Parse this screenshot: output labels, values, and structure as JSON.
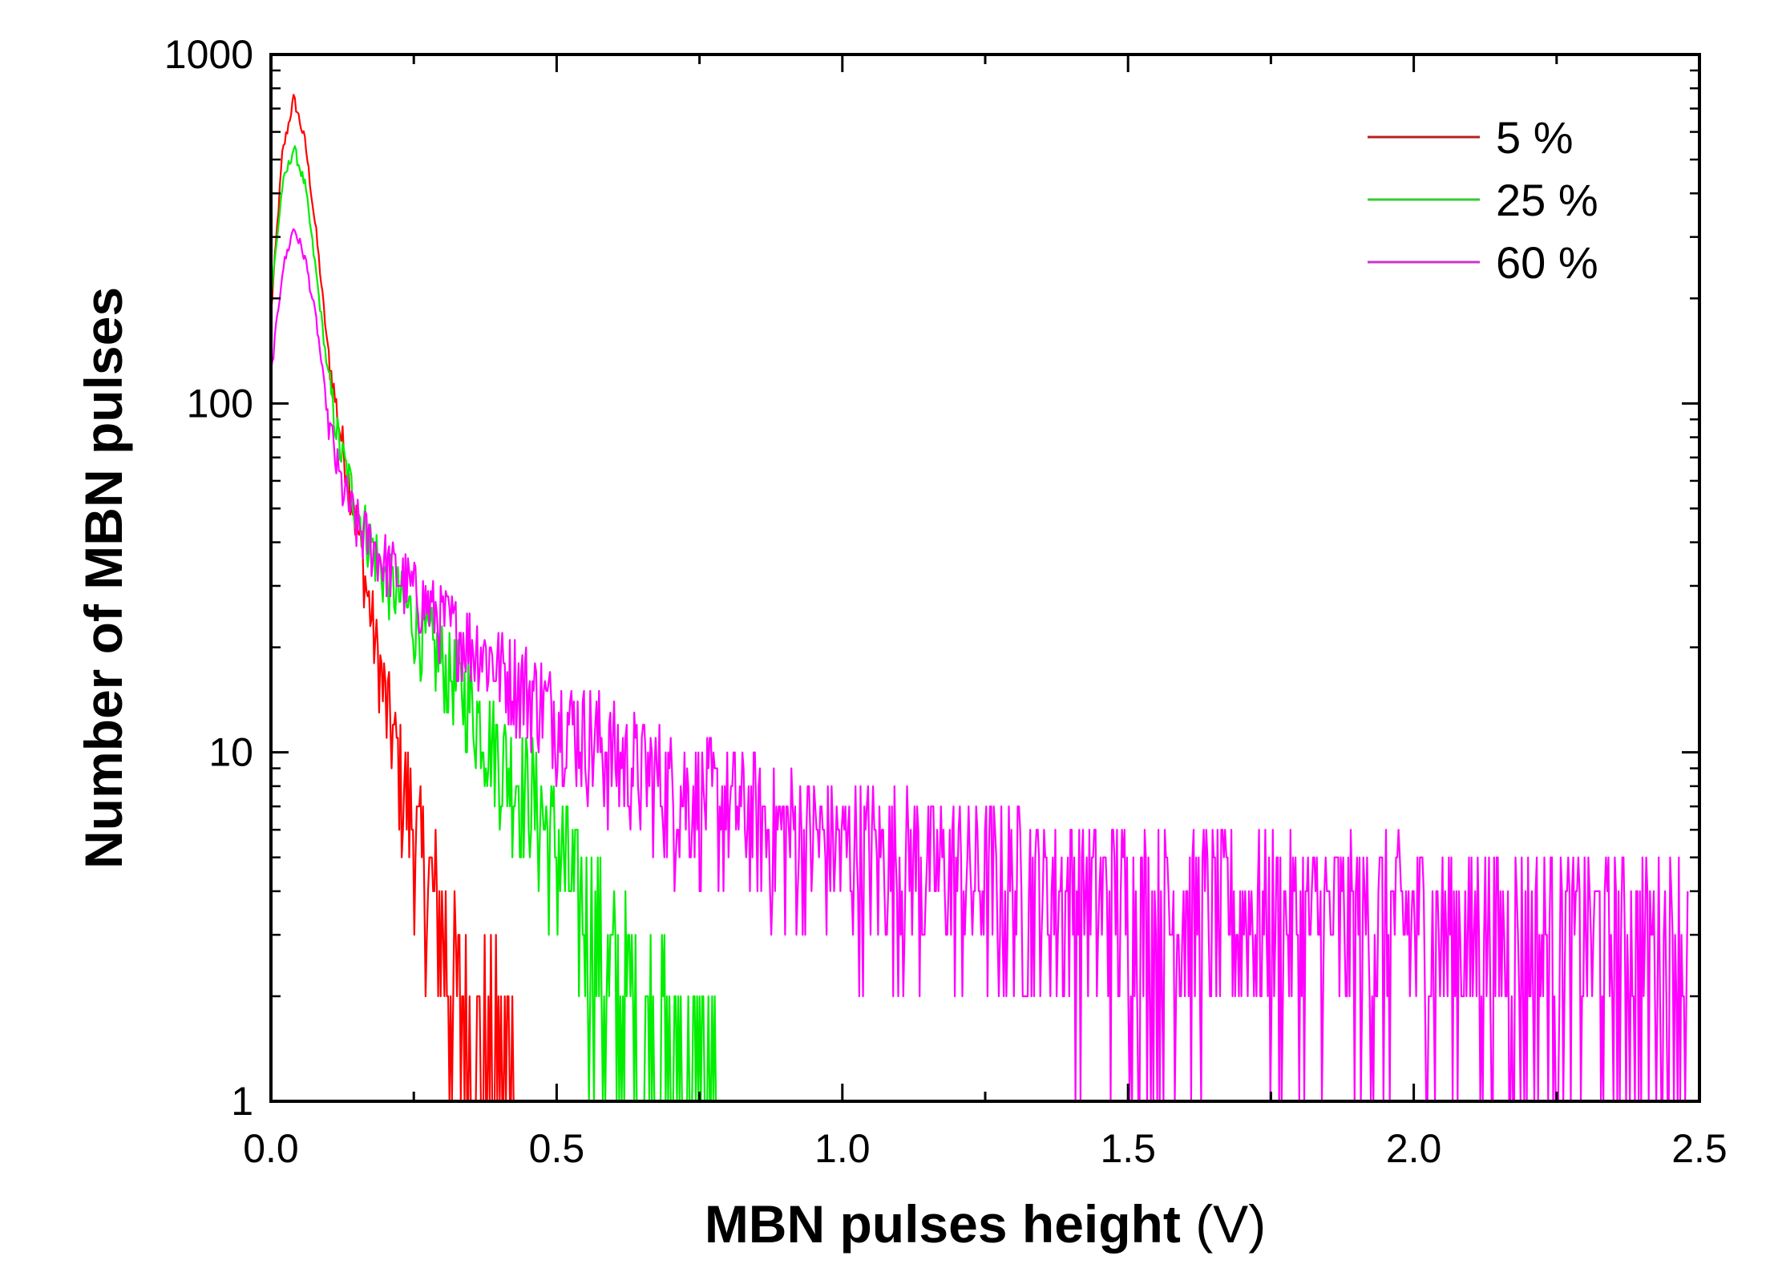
{
  "chart_data": {
    "type": "line",
    "title": "",
    "xlabel": "MBN pulses height",
    "xlabel_unit": "(V)",
    "ylabel": "Number of MBN pulses",
    "xlim": [
      0,
      2.5
    ],
    "ylim": [
      1,
      1000
    ],
    "yscale": "log",
    "x_ticks": [
      {
        "value": 0.0,
        "label": "0.0"
      },
      {
        "value": 0.5,
        "label": "0.5"
      },
      {
        "value": 1.0,
        "label": "1.0"
      },
      {
        "value": 1.5,
        "label": "1.5"
      },
      {
        "value": 2.0,
        "label": "2.0"
      },
      {
        "value": 2.5,
        "label": "2.5"
      }
    ],
    "y_ticks": [
      {
        "value": 1,
        "label": "1"
      },
      {
        "value": 10,
        "label": "10"
      },
      {
        "value": 100,
        "label": "100"
      },
      {
        "value": 1000,
        "label": "1000"
      }
    ],
    "grid": false,
    "legend_position": "top-right",
    "series": [
      {
        "name": "5 %",
        "color": "#b22222",
        "fill_color": "#ff0000",
        "x": [
          0.0,
          0.02,
          0.04,
          0.06,
          0.08,
          0.1,
          0.12,
          0.15,
          0.18,
          0.2,
          0.22,
          0.25,
          0.28,
          0.3,
          0.33,
          0.36,
          0.4,
          0.43
        ],
        "y": [
          180,
          520,
          750,
          560,
          300,
          140,
          85,
          45,
          22,
          14,
          10,
          6,
          4,
          3,
          2,
          1.5,
          1.2,
          1
        ]
      },
      {
        "name": "25 %",
        "color": "#33cc33",
        "fill_color": "#00ee00",
        "x": [
          0.0,
          0.02,
          0.04,
          0.06,
          0.08,
          0.1,
          0.12,
          0.15,
          0.2,
          0.25,
          0.3,
          0.35,
          0.4,
          0.45,
          0.5,
          0.55,
          0.6,
          0.65,
          0.7,
          0.75,
          0.78
        ],
        "y": [
          200,
          420,
          540,
          420,
          230,
          120,
          75,
          50,
          32,
          24,
          18,
          14,
          10,
          8,
          5.5,
          3.5,
          2.2,
          1.6,
          1.3,
          1.1,
          1
        ]
      },
      {
        "name": "60 %",
        "color": "#cc33cc",
        "fill_color": "#ff00ff",
        "x": [
          0.0,
          0.02,
          0.04,
          0.06,
          0.08,
          0.1,
          0.12,
          0.15,
          0.2,
          0.25,
          0.3,
          0.4,
          0.5,
          0.6,
          0.7,
          0.8,
          0.9,
          1.0,
          1.1,
          1.2,
          1.3,
          1.4,
          1.5,
          1.6,
          1.7,
          1.8,
          1.9,
          2.0,
          2.1,
          2.2,
          2.3,
          2.4,
          2.48
        ],
        "y": [
          120,
          240,
          320,
          260,
          170,
          90,
          60,
          45,
          35,
          29,
          24,
          18,
          13,
          10,
          8,
          7,
          6,
          5.5,
          5,
          4.6,
          4.3,
          4,
          3.8,
          3.6,
          3.5,
          3.4,
          3.3,
          3.2,
          3.1,
          3,
          3,
          2.9,
          2.9
        ]
      }
    ]
  }
}
